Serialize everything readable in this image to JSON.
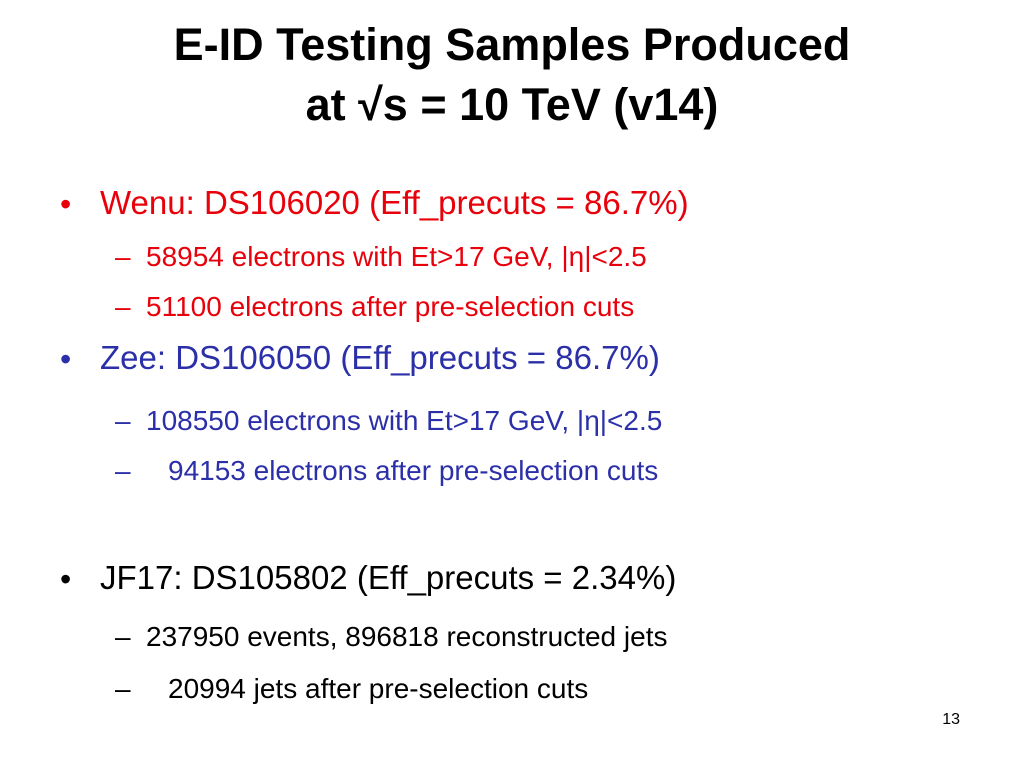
{
  "title": [
    "E-ID Testing Samples Produced",
    "at √s = 10 TeV (v14)"
  ],
  "sections": [
    {
      "heading": "Wenu: DS106020 (Eff_precuts = 86.7%)",
      "items": [
        "58954 electrons with Et>17 GeV, |η|<2.5",
        "51100 electrons after pre-selection cuts"
      ]
    },
    {
      "heading": "Zee: DS106050 (Eff_precuts = 86.7%)",
      "items": [
        "108550 electrons with Et>17 GeV, |η|<2.5",
        "94153 electrons after pre-selection cuts"
      ]
    },
    {
      "heading": "JF17: DS105802 (Eff_precuts = 2.34%)",
      "items": [
        "237950 events, 896818 reconstructed jets",
        "20994 jets after pre-selection cuts"
      ]
    }
  ],
  "page_number": "13"
}
